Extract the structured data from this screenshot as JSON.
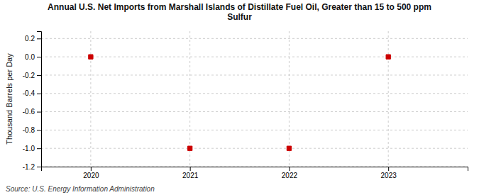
{
  "chart_data": {
    "type": "scatter",
    "title": "Annual U.S. Net Imports from Marshall Islands of Distillate Fuel Oil, Greater than 15 to 500 ppm\nSulfur",
    "ylabel": "Thousand Barrels per Day",
    "annotations": [
      "Source: U.S. Energy Information Administration"
    ],
    "x": [
      2020,
      2021,
      2022,
      2023
    ],
    "values": [
      0.0,
      -1.0,
      -1.0,
      0.0
    ],
    "color": "#cc0000",
    "marker": "square",
    "xlim": [
      2019.5,
      2023.8
    ],
    "ylim": [
      -1.2,
      0.28
    ],
    "xticks": [
      2020,
      2021,
      2022,
      2023
    ],
    "yticks": [
      0.2,
      {
        "value": 0.0,
        "label": "0.0"
      },
      -0.2,
      -0.4,
      -0.6,
      -0.8,
      {
        "value": -1.0,
        "label": "-1.0"
      },
      -1.2
    ],
    "grid": true
  }
}
